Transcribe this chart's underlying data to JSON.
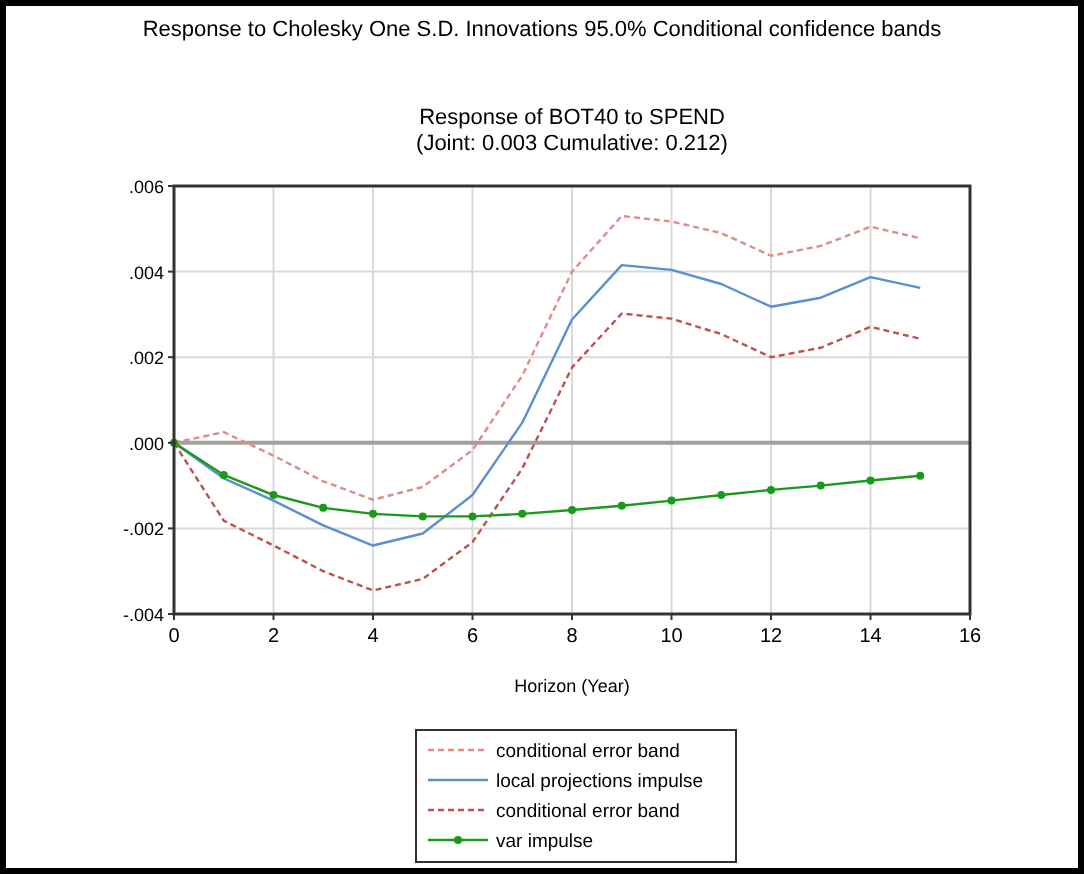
{
  "chart_data": {
    "type": "line",
    "title": "Response to Cholesky One S.D. Innovations 95.0% Conditional confidence bands",
    "subtitle": "Response of BOT40 to SPEND",
    "annotations": [
      "(Joint: 0.003 Cumulative: 0.212)"
    ],
    "xlabel": "Horizon (Year)",
    "x": [
      0,
      1,
      2,
      3,
      4,
      5,
      6,
      7,
      8,
      9,
      10,
      11,
      12,
      13,
      14,
      15
    ],
    "xlim": [
      0,
      16
    ],
    "xticks": [
      0,
      2,
      4,
      6,
      8,
      10,
      12,
      14,
      16
    ],
    "ylim": [
      -0.004,
      0.006
    ],
    "yticks": [
      {
        "value": -0.004,
        "label": "-.004"
      },
      {
        "value": -0.002,
        "label": "-.002"
      },
      {
        "value": 0,
        "label": ".000"
      },
      {
        "value": 0.002,
        "label": ".002"
      },
      {
        "value": 0.004,
        "label": ".004"
      },
      {
        "value": 0.006,
        "label": ".006"
      }
    ],
    "grid": true,
    "legend": "bottom",
    "ref_lines": [
      {
        "axis": "y",
        "value": 0,
        "color": "#a0a0a0"
      }
    ],
    "series": [
      {
        "name": "conditional error band",
        "color": "#e08a8a",
        "line_style": "dashed",
        "marker": "none",
        "values": [
          0,
          0.00025,
          -0.0003,
          -0.0009,
          -0.00133,
          -0.00103,
          -0.00017,
          0.00157,
          0.004,
          0.0053,
          0.00517,
          0.0049,
          0.00437,
          0.0046,
          0.00505,
          0.00478
        ]
      },
      {
        "name": "local projections impulse",
        "color": "#5b8fd0",
        "line_style": "solid",
        "marker": "none",
        "values": [
          0,
          -0.00083,
          -0.00135,
          -0.00193,
          -0.0024,
          -0.00212,
          -0.00122,
          0.00047,
          0.00288,
          0.00415,
          0.00404,
          0.00371,
          0.00318,
          0.00339,
          0.00387,
          0.00362
        ]
      },
      {
        "name": "conditional error band",
        "color": "#c0504d",
        "line_style": "dashed",
        "marker": "none",
        "values": [
          0,
          -0.00182,
          -0.0024,
          -0.003,
          -0.00345,
          -0.00318,
          -0.00232,
          -0.0006,
          0.00176,
          0.00302,
          0.0029,
          0.00254,
          0.002,
          0.00222,
          0.00271,
          0.00243
        ]
      },
      {
        "name": "var impulse",
        "color": "#1a9a1a",
        "line_style": "solid",
        "marker": "circle",
        "values": [
          0,
          -0.00075,
          -0.00122,
          -0.00152,
          -0.00166,
          -0.00172,
          -0.00172,
          -0.00166,
          -0.00157,
          -0.00147,
          -0.00135,
          -0.00122,
          -0.0011,
          -0.001,
          -0.00088,
          -0.00077
        ]
      }
    ]
  }
}
